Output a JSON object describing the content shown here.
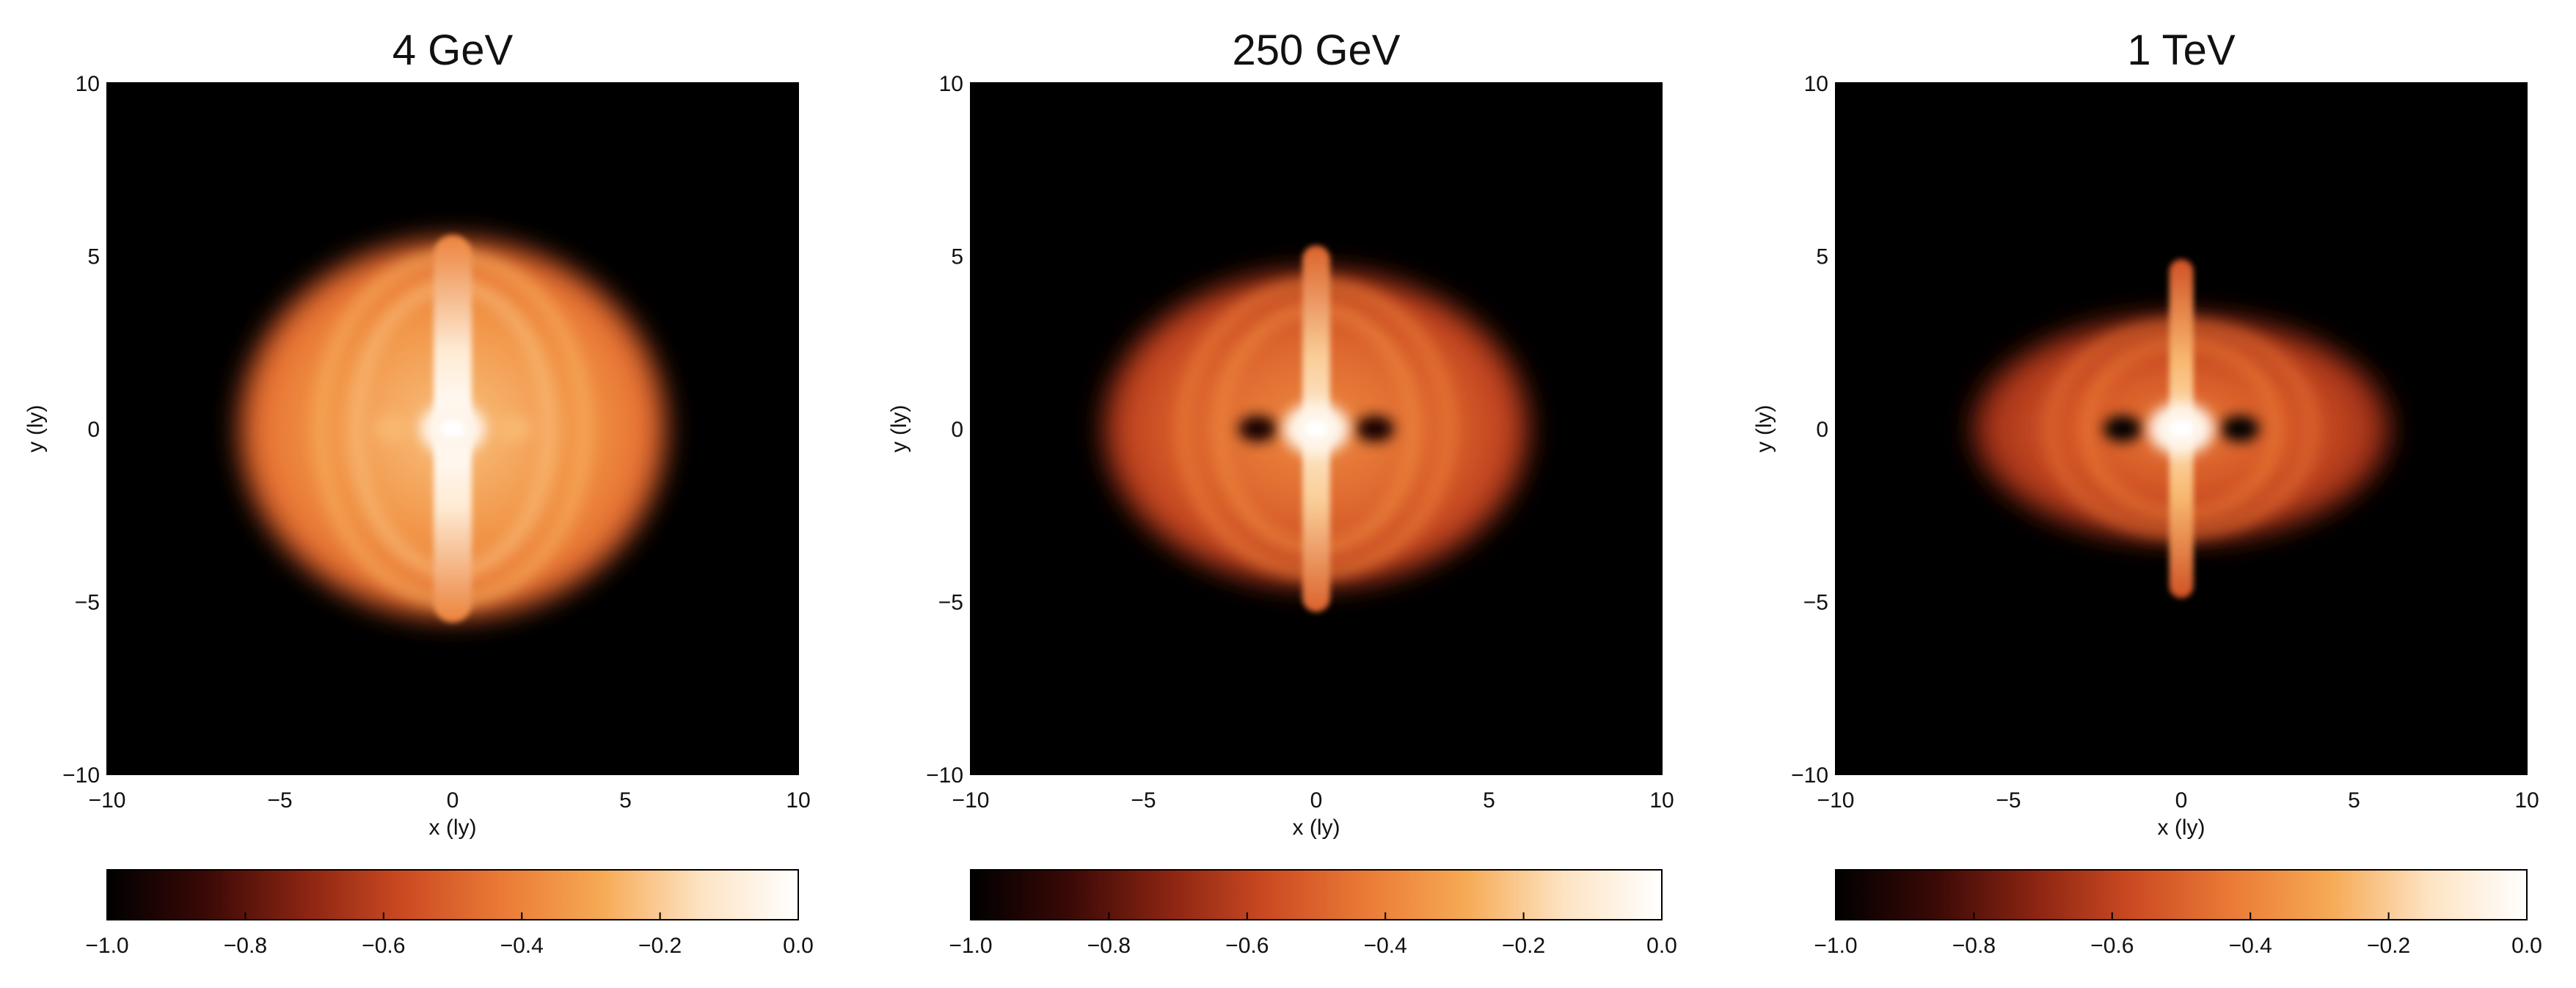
{
  "chart_data": [
    {
      "type": "heatmap",
      "title": "4 GeV",
      "xlabel": "x (ly)",
      "ylabel": "y (ly)",
      "xlim": [
        -10,
        10
      ],
      "ylim": [
        -10,
        10
      ],
      "xticks": [
        -10,
        -5,
        0,
        5,
        10
      ],
      "yticks": [
        -10,
        -5,
        0,
        5,
        10
      ],
      "xtick_labels": [
        "−10",
        "−5",
        "0",
        "5",
        "10"
      ],
      "ytick_labels": [
        "−10",
        "−5",
        "0",
        "5",
        "10"
      ],
      "emission": {
        "halo_rx": 6.2,
        "halo_ry": 5.5,
        "halo_level": -0.35,
        "jet_half_length": 5.6,
        "jet_half_width": 0.55,
        "jet_level": -0.1,
        "core_level": 0.0,
        "hole_level": -0.25
      },
      "colorbar": {
        "range": [
          -1.0,
          0.0
        ],
        "ticks": [
          -1.0,
          -0.8,
          -0.6,
          -0.4,
          -0.2,
          0.0
        ],
        "tick_labels": [
          "−1.0",
          "−0.8",
          "−0.6",
          "−0.4",
          "−0.2",
          "0.0"
        ]
      }
    },
    {
      "type": "heatmap",
      "title": "250 GeV",
      "xlabel": "x (ly)",
      "ylabel": "y (ly)",
      "xlim": [
        -10,
        10
      ],
      "ylim": [
        -10,
        10
      ],
      "xticks": [
        -10,
        -5,
        0,
        5,
        10
      ],
      "yticks": [
        -10,
        -5,
        0,
        5,
        10
      ],
      "xtick_labels": [
        "−10",
        "−5",
        "0",
        "5",
        "10"
      ],
      "ytick_labels": [
        "−10",
        "−5",
        "0",
        "5",
        "10"
      ],
      "emission": {
        "halo_rx": 6.2,
        "halo_ry": 4.6,
        "halo_level": -0.5,
        "jet_half_length": 5.3,
        "jet_half_width": 0.4,
        "jet_level": -0.2,
        "core_level": 0.0,
        "hole_level": -0.95
      },
      "colorbar": {
        "range": [
          -1.0,
          0.0
        ],
        "ticks": [
          -1.0,
          -0.8,
          -0.6,
          -0.4,
          -0.2,
          0.0
        ],
        "tick_labels": [
          "−1.0",
          "−0.8",
          "−0.6",
          "−0.4",
          "−0.2",
          "0.0"
        ]
      }
    },
    {
      "type": "heatmap",
      "title": "1 TeV",
      "xlabel": "x (ly)",
      "ylabel": "y (ly)",
      "xlim": [
        -10,
        10
      ],
      "ylim": [
        -10,
        10
      ],
      "xticks": [
        -10,
        -5,
        0,
        5,
        10
      ],
      "yticks": [
        -10,
        -5,
        0,
        5,
        10
      ],
      "xtick_labels": [
        "−10",
        "−5",
        "0",
        "5",
        "10"
      ],
      "ytick_labels": [
        "−10",
        "−5",
        "0",
        "5",
        "10"
      ],
      "emission": {
        "halo_rx": 6.1,
        "halo_ry": 3.3,
        "halo_level": -0.55,
        "jet_half_length": 4.9,
        "jet_half_width": 0.35,
        "jet_level": -0.25,
        "core_level": 0.0,
        "hole_level": -1.0
      },
      "colorbar": {
        "range": [
          -1.0,
          0.0
        ],
        "ticks": [
          -1.0,
          -0.8,
          -0.6,
          -0.4,
          -0.2,
          0.0
        ],
        "tick_labels": [
          "−1.0",
          "−0.8",
          "−0.6",
          "−0.4",
          "−0.2",
          "0.0"
        ]
      }
    }
  ],
  "colormap": {
    "name": "hot-copper",
    "stops": [
      "#000000",
      "#3a0906",
      "#8a2412",
      "#cc4a22",
      "#ea7a36",
      "#f6a953",
      "#fde3c2",
      "#ffffff"
    ]
  }
}
